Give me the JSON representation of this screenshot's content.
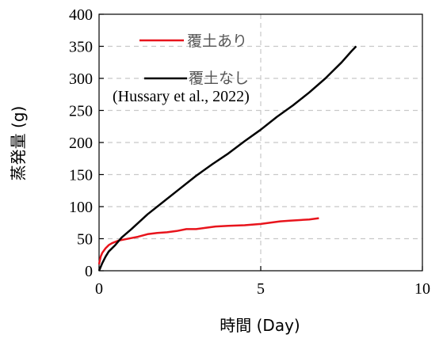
{
  "chart_data": {
    "type": "line",
    "title": "",
    "xlabel": "時間 (Day)",
    "ylabel": "蒸発量 (g)",
    "xlim": [
      0,
      10
    ],
    "ylim": [
      0,
      400
    ],
    "x_ticks": [
      0,
      5,
      10
    ],
    "y_ticks": [
      0,
      50,
      100,
      150,
      200,
      250,
      300,
      350,
      400
    ],
    "grid": "dashed",
    "legend_position": "top-left",
    "annotation": "(Hussary et al., 2022)",
    "series": [
      {
        "name": "覆土あり",
        "color": "#e8141c",
        "points": [
          [
            0,
            10
          ],
          [
            0.05,
            22
          ],
          [
            0.1,
            28
          ],
          [
            0.2,
            35
          ],
          [
            0.3,
            40
          ],
          [
            0.4,
            43
          ],
          [
            0.6,
            47
          ],
          [
            0.8,
            49
          ],
          [
            1.0,
            51
          ],
          [
            1.2,
            53
          ],
          [
            1.5,
            57
          ],
          [
            1.8,
            59
          ],
          [
            2.1,
            60
          ],
          [
            2.4,
            62
          ],
          [
            2.7,
            65
          ],
          [
            3.0,
            65
          ],
          [
            3.3,
            67
          ],
          [
            3.6,
            69
          ],
          [
            4.0,
            70
          ],
          [
            4.5,
            71
          ],
          [
            5.0,
            73
          ],
          [
            5.3,
            75
          ],
          [
            5.6,
            77
          ],
          [
            5.9,
            78
          ],
          [
            6.2,
            79
          ],
          [
            6.5,
            80
          ],
          [
            6.8,
            82
          ]
        ]
      },
      {
        "name": "覆土なし",
        "color": "#000000",
        "points": [
          [
            0,
            0
          ],
          [
            0.1,
            12
          ],
          [
            0.2,
            22
          ],
          [
            0.3,
            30
          ],
          [
            0.5,
            40
          ],
          [
            0.7,
            52
          ],
          [
            1.0,
            65
          ],
          [
            1.5,
            88
          ],
          [
            2.0,
            108
          ],
          [
            2.5,
            128
          ],
          [
            3.0,
            148
          ],
          [
            3.5,
            166
          ],
          [
            4.0,
            183
          ],
          [
            4.5,
            202
          ],
          [
            5.0,
            220
          ],
          [
            5.5,
            240
          ],
          [
            6.0,
            258
          ],
          [
            6.5,
            278
          ],
          [
            7.0,
            300
          ],
          [
            7.2,
            310
          ],
          [
            7.5,
            325
          ],
          [
            7.8,
            342
          ],
          [
            7.95,
            350
          ]
        ]
      }
    ]
  }
}
